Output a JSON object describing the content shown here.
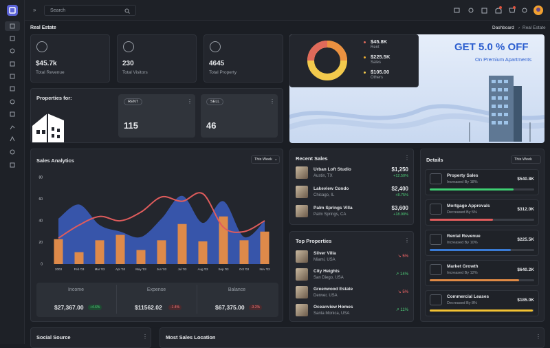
{
  "topbar": {
    "search": "Search"
  },
  "breadcrumb": {
    "title": "Real Estate",
    "crumbs": [
      "Dashboard",
      "Real Estate"
    ]
  },
  "stats": [
    {
      "value": "$45.7k",
      "label": "Total Revenue"
    },
    {
      "value": 230,
      "label": "Total Visitors"
    },
    {
      "value": 4645,
      "label": "Total Property"
    }
  ],
  "donut_legend": [
    {
      "value": "$45.8K",
      "label": "Rent"
    },
    {
      "value": "$225.5K",
      "label": "Sales"
    },
    {
      "value": "$105.00",
      "label": "Others"
    }
  ],
  "banner": {
    "title": "GET 5.0 % OFF",
    "subtitle": "On Premium Apartments"
  },
  "properties_for": {
    "title": "Properties for:",
    "cards": [
      {
        "label": "RENT",
        "value": 115
      },
      {
        "label": "SELL",
        "value": 46
      }
    ]
  },
  "chart_data": {
    "type": "bar",
    "title": "Sales Analytics",
    "categories": [
      "2003",
      "Feb '03",
      "Mar '03",
      "Apr '03",
      "May '03",
      "Jun '03",
      "Jul '03",
      "Aug '03",
      "Sep '03",
      "Oct '03",
      "Nov '03"
    ],
    "series": [
      {
        "type": "area",
        "color": "#3a5bb8",
        "values": [
          42,
          55,
          36,
          30,
          25,
          42,
          63,
          38,
          58,
          25,
          40
        ]
      },
      {
        "type": "bar",
        "color": "#de8a4a",
        "values": [
          23,
          11,
          22,
          27,
          13,
          22,
          37,
          21,
          44,
          22,
          30
        ]
      },
      {
        "type": "line",
        "color": "#e05c5c",
        "values": [
          24,
          36,
          44,
          40,
          48,
          62,
          58,
          65,
          34,
          30,
          40
        ]
      }
    ],
    "ylim": [
      0,
      80
    ],
    "yticks": [
      0,
      20,
      40,
      60,
      80
    ]
  },
  "sales_filter": "This Week",
  "summary": [
    {
      "label": "Income",
      "value": "$27,367.00",
      "change": "+4.6%"
    },
    {
      "label": "Expense",
      "value": "$11562.02",
      "change": "-1.4%"
    },
    {
      "label": "Balance",
      "value": "$67,375.00",
      "change": "-3.2%"
    }
  ],
  "recent_sales": {
    "title": "Recent Sales",
    "items": [
      {
        "name": "Urban Loft Studio",
        "location": "Austin, TX",
        "price": "$1,250",
        "change": "+12.50%"
      },
      {
        "name": "Lakeview Condo",
        "location": "Chicago, IL",
        "price": "$2,400",
        "change": "+8.75%"
      },
      {
        "name": "Palm Springs Villa",
        "location": "Palm Springs, CA",
        "price": "$3,600",
        "change": "+18.90%"
      }
    ]
  },
  "top_properties": {
    "title": "Top Properties",
    "items": [
      {
        "name": "Silver Villa",
        "location": "Miami, USA",
        "change": "↘ 5%"
      },
      {
        "name": "City Heights",
        "location": "San Diego, USA",
        "change": "↗ 14%"
      },
      {
        "name": "Greenwood Estate",
        "location": "Denver, USA",
        "change": "↘ 5%"
      },
      {
        "name": "Oceanview Homes",
        "location": "Santa Monica, USA",
        "change": "↗ 11%"
      }
    ]
  },
  "details": {
    "title": "Details",
    "filter": "This Week",
    "items": [
      {
        "name": "Property Sales",
        "note": "Increased By 18%",
        "value": "$540.8K"
      },
      {
        "name": "Mortgage Approvals",
        "note": "Decreased By 5%",
        "value": "$312.0K"
      },
      {
        "name": "Rental Revenue",
        "note": "Increased By 10%",
        "value": "$225.5K"
      },
      {
        "name": "Market Growth",
        "note": "Increased By 12%",
        "value": "$640.2K"
      },
      {
        "name": "Commercial Leases",
        "note": "Decreased By 8%",
        "value": "$185.0K"
      }
    ]
  },
  "bottom": {
    "social": "Social Source",
    "location": "Most Sales Location"
  }
}
